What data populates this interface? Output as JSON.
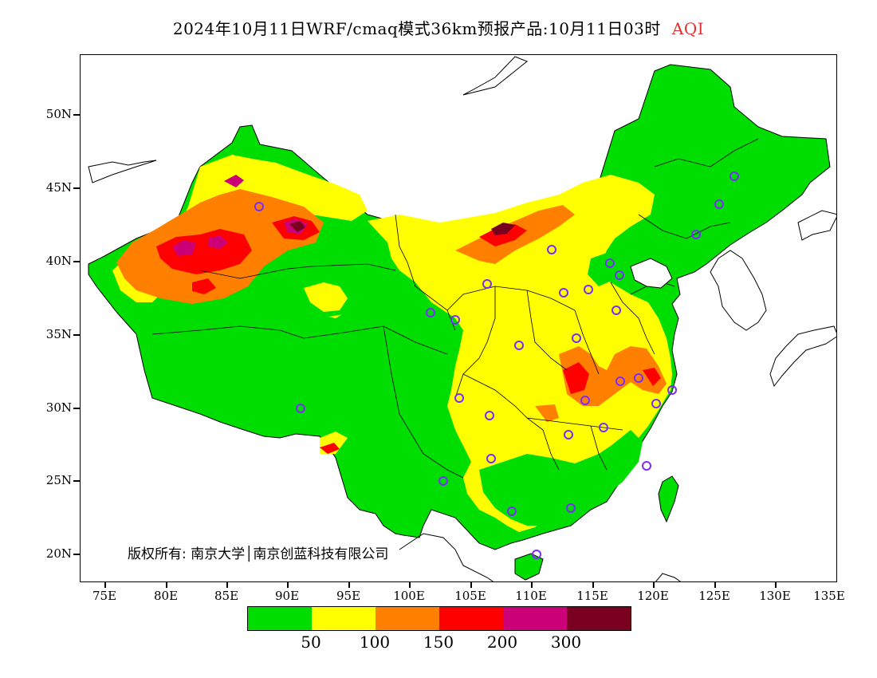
{
  "title": {
    "text": "2024年10月11日WRF/cmaq模式36km预报产品:10月11日03时",
    "variable": "AQI",
    "variable_color": "#e03030"
  },
  "axes": {
    "lat_labels": [
      "50N",
      "45N",
      "40N",
      "35N",
      "30N",
      "25N",
      "20N"
    ],
    "lon_labels": [
      "75E",
      "80E",
      "85E",
      "90E",
      "95E",
      "100E",
      "105E",
      "110E",
      "115E",
      "120E",
      "125E",
      "130E",
      "135E"
    ]
  },
  "legend": {
    "colors": [
      "#00dd00",
      "#ffff00",
      "#ff8000",
      "#ff0000",
      "#cc0077",
      "#7a0020"
    ],
    "labels": [
      "50",
      "100",
      "150",
      "200",
      "300"
    ]
  },
  "copyright": "版权所有: 南京大学│南京创蓝科技有限公司",
  "map": {
    "colors": {
      "good": "#00dd00",
      "moderate": "#ffff00",
      "usg": "#ff8000",
      "unhealthy": "#ff0000",
      "very_unhealthy": "#cc0077",
      "hazardous": "#7a0020",
      "station_marker": "#7a2cff"
    }
  }
}
